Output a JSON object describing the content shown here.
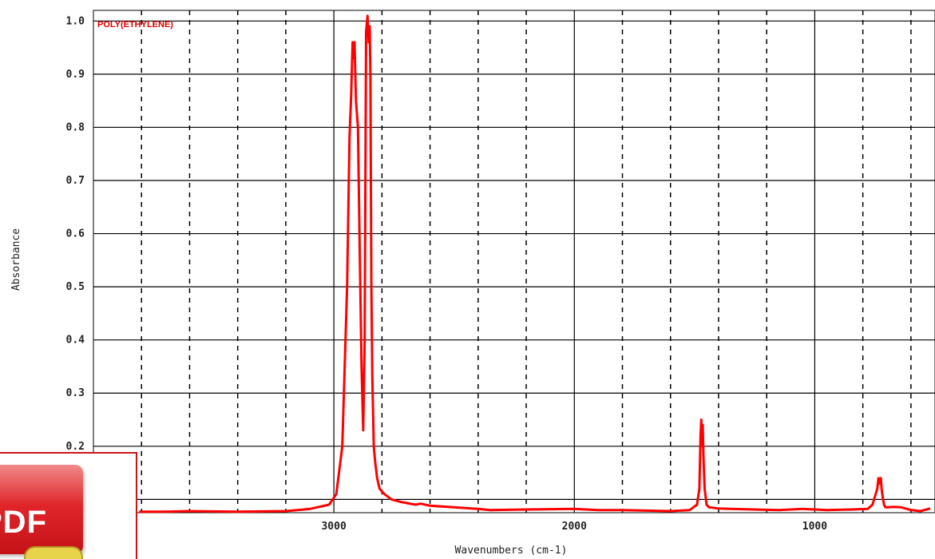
{
  "chart_data": {
    "type": "line",
    "title": "POLY(ETHYLENE)",
    "xlabel": "Wavenumbers (cm-1)",
    "ylabel": "Absorbance",
    "xlim": [
      4000,
      500
    ],
    "ylim": [
      0.075,
      1.02
    ],
    "x_ticks": [
      3000,
      2000,
      1000
    ],
    "x_tick_labels": [
      "3000",
      "2000",
      "1000"
    ],
    "y_ticks": [
      0.2,
      0.3,
      0.4,
      0.5,
      0.6,
      0.7,
      0.8,
      0.9,
      1.0
    ],
    "y_tick_labels": [
      "0.2",
      "0.3",
      "0.4",
      "0.5",
      "0.6",
      "0.7",
      "0.8",
      "0.9",
      "1.0"
    ],
    "grid": true,
    "series": [
      {
        "color": "#ff0000",
        "x": [
          3810,
          3700,
          3600,
          3400,
          3200,
          3100,
          3020,
          2990,
          2965,
          2945,
          2935,
          2928,
          2922,
          2918,
          2914,
          2908,
          2900,
          2892,
          2885,
          2878,
          2872,
          2866,
          2860,
          2855,
          2851,
          2848,
          2844,
          2840,
          2834,
          2828,
          2820,
          2810,
          2790,
          2760,
          2720,
          2660,
          2640,
          2600,
          2500,
          2400,
          2350,
          2200,
          2000,
          1900,
          1800,
          1600,
          1520,
          1490,
          1480,
          1475,
          1472,
          1469,
          1466,
          1463,
          1458,
          1450,
          1440,
          1400,
          1350,
          1250,
          1150,
          1050,
          950,
          850,
          780,
          760,
          740,
          735,
          730,
          725,
          722,
          719,
          716,
          712,
          706,
          695,
          670,
          640,
          600,
          560,
          520
        ],
        "y": [
          0.077,
          0.077,
          0.078,
          0.077,
          0.078,
          0.082,
          0.09,
          0.11,
          0.2,
          0.5,
          0.78,
          0.86,
          0.96,
          0.93,
          0.96,
          0.85,
          0.8,
          0.55,
          0.35,
          0.23,
          0.4,
          0.98,
          1.01,
          0.96,
          0.99,
          0.9,
          0.5,
          0.33,
          0.2,
          0.17,
          0.14,
          0.12,
          0.11,
          0.1,
          0.095,
          0.09,
          0.092,
          0.088,
          0.085,
          0.082,
          0.08,
          0.081,
          0.082,
          0.08,
          0.08,
          0.078,
          0.08,
          0.09,
          0.12,
          0.22,
          0.25,
          0.2,
          0.24,
          0.18,
          0.12,
          0.09,
          0.085,
          0.083,
          0.082,
          0.081,
          0.08,
          0.082,
          0.08,
          0.081,
          0.082,
          0.09,
          0.12,
          0.14,
          0.13,
          0.14,
          0.12,
          0.11,
          0.1,
          0.09,
          0.085,
          0.085,
          0.086,
          0.085,
          0.08,
          0.078,
          0.083
        ]
      }
    ]
  },
  "overlay": {
    "pdf_label": "PDF"
  }
}
